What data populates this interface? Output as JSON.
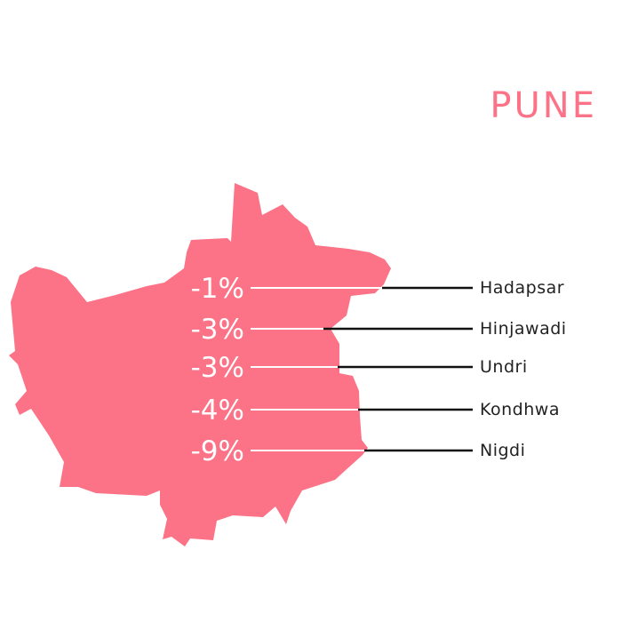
{
  "title": "PUNE",
  "colors": {
    "map_fill": "#fc7287",
    "title": "#fc7287",
    "line_inside": "#ffffff",
    "line_outside": "#111111"
  },
  "chart_data": {
    "type": "bar",
    "title": "PUNE",
    "categories": [
      "Hadapsar",
      "Hinjawadi",
      "Undri",
      "Kondhwa",
      "Nigdi"
    ],
    "labels": [
      "-1%",
      "-3%",
      "-3%",
      "-4%",
      "-9%"
    ],
    "values": [
      -1,
      -3,
      -3,
      -4,
      -9
    ]
  }
}
